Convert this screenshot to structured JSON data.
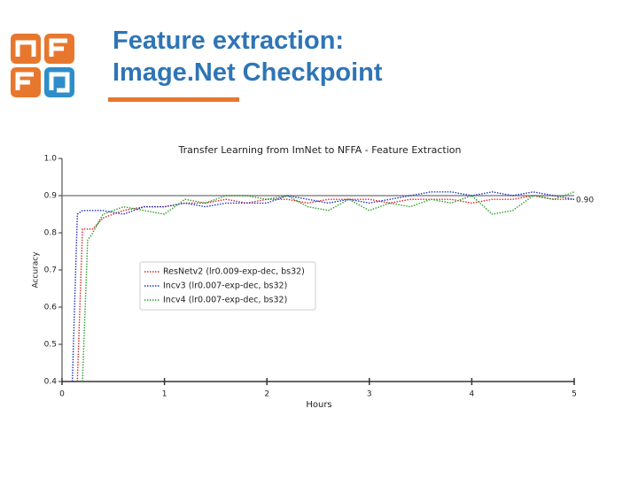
{
  "slide": {
    "title": [
      "Feature extraction:",
      "Image.Net Checkpoint"
    ]
  },
  "chart_data": {
    "type": "line",
    "title": "Transfer Learning from ImNet to NFFA - Feature Extraction",
    "xlabel": "Hours",
    "ylabel": "Accuracy",
    "xlim": [
      0,
      5
    ],
    "ylim": [
      0.4,
      1.0
    ],
    "xticks": [
      0,
      1,
      2,
      3,
      4,
      5
    ],
    "yticks": [
      0.4,
      0.5,
      0.6,
      0.7,
      0.8,
      0.9,
      {
        "value": 1.0,
        "label": "1.0"
      }
    ],
    "legend": "center left",
    "reference_line": {
      "value": 0.9,
      "label": "0.90",
      "color": "#888888"
    },
    "x": [
      0.1,
      0.15,
      0.2,
      0.25,
      0.3,
      0.4,
      0.6,
      0.8,
      1.0,
      1.2,
      1.4,
      1.6,
      1.8,
      2.0,
      2.2,
      2.4,
      2.6,
      2.8,
      3.0,
      3.2,
      3.4,
      3.6,
      3.8,
      4.0,
      4.2,
      4.4,
      4.6,
      4.8,
      5.0
    ],
    "series": [
      {
        "name": "ResNetv2 (lr0.009-exp-dec, bs32)",
        "color": "#d62728",
        "values": [
          null,
          0.4,
          0.81,
          0.81,
          0.81,
          0.84,
          0.86,
          0.87,
          0.87,
          0.88,
          0.88,
          0.89,
          0.88,
          0.89,
          0.89,
          0.88,
          0.89,
          0.89,
          0.89,
          0.88,
          0.89,
          0.89,
          0.89,
          0.88,
          0.89,
          0.89,
          0.9,
          0.89,
          0.89
        ]
      },
      {
        "name": "Incv3 (lr0.007-exp-dec, bs32)",
        "color": "#2033c0",
        "values": [
          0.4,
          0.85,
          0.86,
          0.86,
          0.86,
          0.86,
          0.85,
          0.87,
          0.87,
          0.88,
          0.87,
          0.88,
          0.88,
          0.88,
          0.9,
          0.89,
          0.88,
          0.89,
          0.88,
          0.89,
          0.9,
          0.91,
          0.91,
          0.9,
          0.91,
          0.9,
          0.91,
          0.9,
          0.89
        ]
      },
      {
        "name": "Incv4 (lr0.007-exp-dec, bs32)",
        "color": "#2ca02c",
        "values": [
          null,
          null,
          0.4,
          0.78,
          0.8,
          0.85,
          0.87,
          0.86,
          0.85,
          0.89,
          0.88,
          0.9,
          0.9,
          0.89,
          0.9,
          0.87,
          0.86,
          0.89,
          0.86,
          0.88,
          0.87,
          0.89,
          0.88,
          0.9,
          0.85,
          0.86,
          0.9,
          0.89,
          0.91
        ]
      }
    ]
  }
}
